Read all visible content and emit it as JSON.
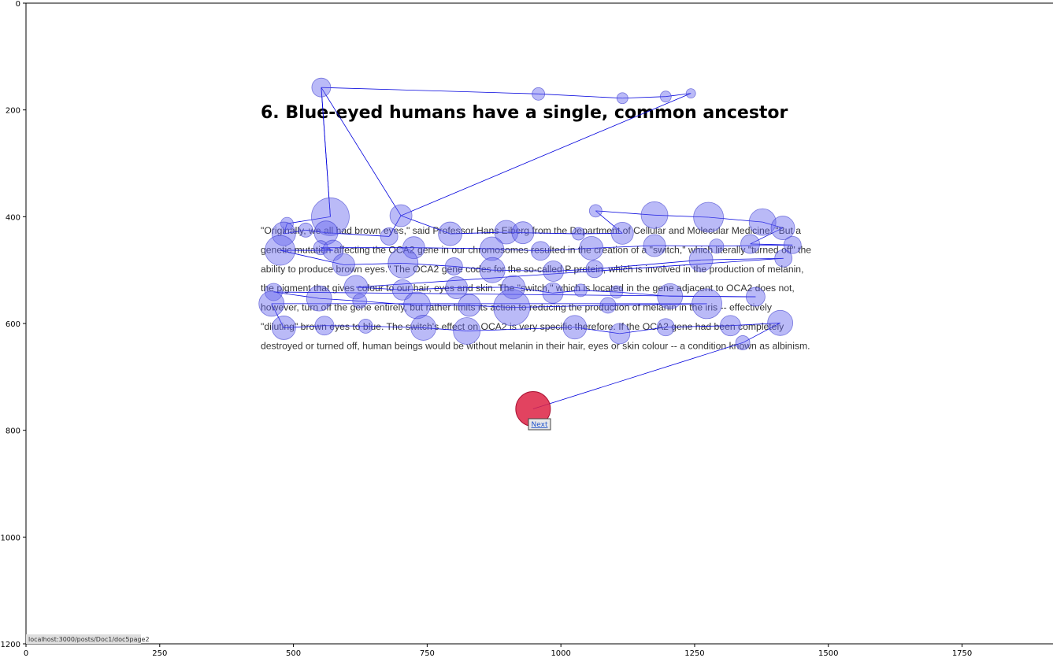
{
  "page": {
    "heading": "6. Blue-eyed humans have a single, common ancestor",
    "paragraph_lines": [
      "\"Originally, we all had brown eyes,\" said Professor Hans Eiberg from the Department of Cellular and Molecular Medicine. \"But a",
      "genetic mutation affecting the OCA2 gene in our chromosomes resulted in the creation of a \"switch,\" which literally \"turned off\" the",
      "ability to produce brown eyes.\" The OCA2 gene codes for the so-called P protein, which is involved in the production of melanin,",
      "the pigment that gives colour to our hair, eyes and skin. The \"switch,\" which is located in the gene adjacent to OCA2 does not,",
      "however, turn off the gene entirely, but rather limits its action to reducing the production of melanin in the iris -- effectively",
      "\"diluting\" brown eyes to blue. The switch's effect on OCA2 is very specific therefore. If the OCA2 gene had been completely",
      "destroyed or turned off, human beings would be without melanin in their hair, eyes or skin colour -- a condition known as albinism."
    ],
    "next_label": "Next",
    "status_url": "localhost:3000/posts/Doc1/doc5page2"
  },
  "chart_data": {
    "type": "scatter",
    "title": "",
    "xlabel": "",
    "ylabel": "",
    "xlim": [
      0,
      1920
    ],
    "ylim": [
      1200,
      0
    ],
    "x_ticks": [
      "0",
      "250",
      "500",
      "750",
      "1000",
      "1250",
      "1500",
      "1750"
    ],
    "y_ticks": [
      "0",
      "200",
      "400",
      "600",
      "800",
      "1000",
      "1200"
    ],
    "grid": false,
    "colors": {
      "fixation": "#6666ee",
      "path": "#0000dd",
      "last_fixation": "#dd2244"
    },
    "fixations": [
      [
        552,
        158,
        12
      ],
      [
        569,
        400,
        24
      ],
      [
        488,
        413,
        8
      ],
      [
        482,
        432,
        15
      ],
      [
        523,
        425,
        9
      ],
      [
        561,
        430,
        15
      ],
      [
        679,
        437,
        11
      ],
      [
        701,
        398,
        14
      ],
      [
        793,
        432,
        15
      ],
      [
        898,
        429,
        15
      ],
      [
        929,
        430,
        14
      ],
      [
        1033,
        432,
        8
      ],
      [
        1115,
        431,
        14
      ],
      [
        1065,
        389,
        8
      ],
      [
        1175,
        397,
        17
      ],
      [
        1276,
        401,
        19
      ],
      [
        1377,
        410,
        17
      ],
      [
        1415,
        421,
        15
      ],
      [
        1354,
        451,
        12
      ],
      [
        1433,
        453,
        11
      ],
      [
        1291,
        455,
        9
      ],
      [
        1175,
        454,
        14
      ],
      [
        1057,
        459,
        15
      ],
      [
        962,
        464,
        12
      ],
      [
        871,
        460,
        15
      ],
      [
        725,
        458,
        14
      ],
      [
        551,
        458,
        9
      ],
      [
        574,
        463,
        13
      ],
      [
        475,
        463,
        19
      ],
      [
        594,
        490,
        14
      ],
      [
        705,
        487,
        19
      ],
      [
        800,
        493,
        11
      ],
      [
        872,
        500,
        16
      ],
      [
        986,
        502,
        13
      ],
      [
        1063,
        498,
        11
      ],
      [
        1262,
        481,
        15
      ],
      [
        1416,
        478,
        11
      ],
      [
        617,
        532,
        15
      ],
      [
        704,
        537,
        13
      ],
      [
        805,
        533,
        14
      ],
      [
        911,
        532,
        15
      ],
      [
        985,
        543,
        13
      ],
      [
        1037,
        538,
        8
      ],
      [
        1104,
        541,
        8
      ],
      [
        1204,
        549,
        16
      ],
      [
        1364,
        550,
        12
      ],
      [
        463,
        541,
        11
      ],
      [
        548,
        553,
        16
      ],
      [
        624,
        558,
        9
      ],
      [
        731,
        566,
        17
      ],
      [
        829,
        566,
        14
      ],
      [
        908,
        570,
        23
      ],
      [
        1088,
        566,
        10
      ],
      [
        1273,
        563,
        19
      ],
      [
        459,
        563,
        16
      ],
      [
        482,
        608,
        15
      ],
      [
        558,
        604,
        12
      ],
      [
        635,
        605,
        9
      ],
      [
        743,
        608,
        16
      ],
      [
        824,
        614,
        17
      ],
      [
        1026,
        607,
        15
      ],
      [
        1110,
        619,
        13
      ],
      [
        1196,
        607,
        11
      ],
      [
        1317,
        604,
        13
      ],
      [
        1410,
        599,
        16
      ],
      [
        1340,
        636,
        9
      ]
    ],
    "saccade_order_last": [
      [
        1340,
        636
      ],
      [
        948,
        760
      ]
    ],
    "last_fixation": [
      948,
      760,
      22
    ],
    "top_sweep": [
      [
        569,
        400
      ],
      [
        552,
        158
      ],
      [
        958,
        170
      ],
      [
        1115,
        178
      ],
      [
        1196,
        175
      ],
      [
        1243,
        169
      ],
      [
        701,
        398
      ]
    ]
  }
}
